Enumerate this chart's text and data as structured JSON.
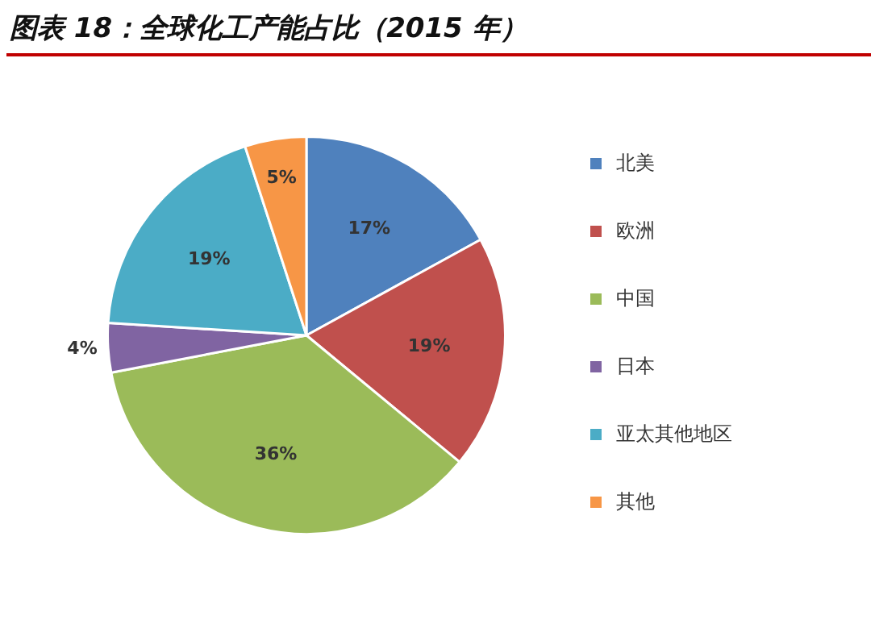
{
  "chart_data": {
    "type": "pie",
    "title": "图表 18：全球化工产能占比（2015 年）",
    "categories": [
      "北美",
      "欧洲",
      "中国",
      "日本",
      "亚太其他地区",
      "其他"
    ],
    "values": [
      17,
      19,
      36,
      4,
      19,
      5
    ],
    "colors": [
      "#4f81bd",
      "#c0504d",
      "#9bbb59",
      "#8064a2",
      "#4bacc6",
      "#f79646"
    ],
    "value_labels": [
      "17%",
      "19%",
      "36%",
      "4%",
      "19%",
      "5%"
    ],
    "legend": "right"
  }
}
